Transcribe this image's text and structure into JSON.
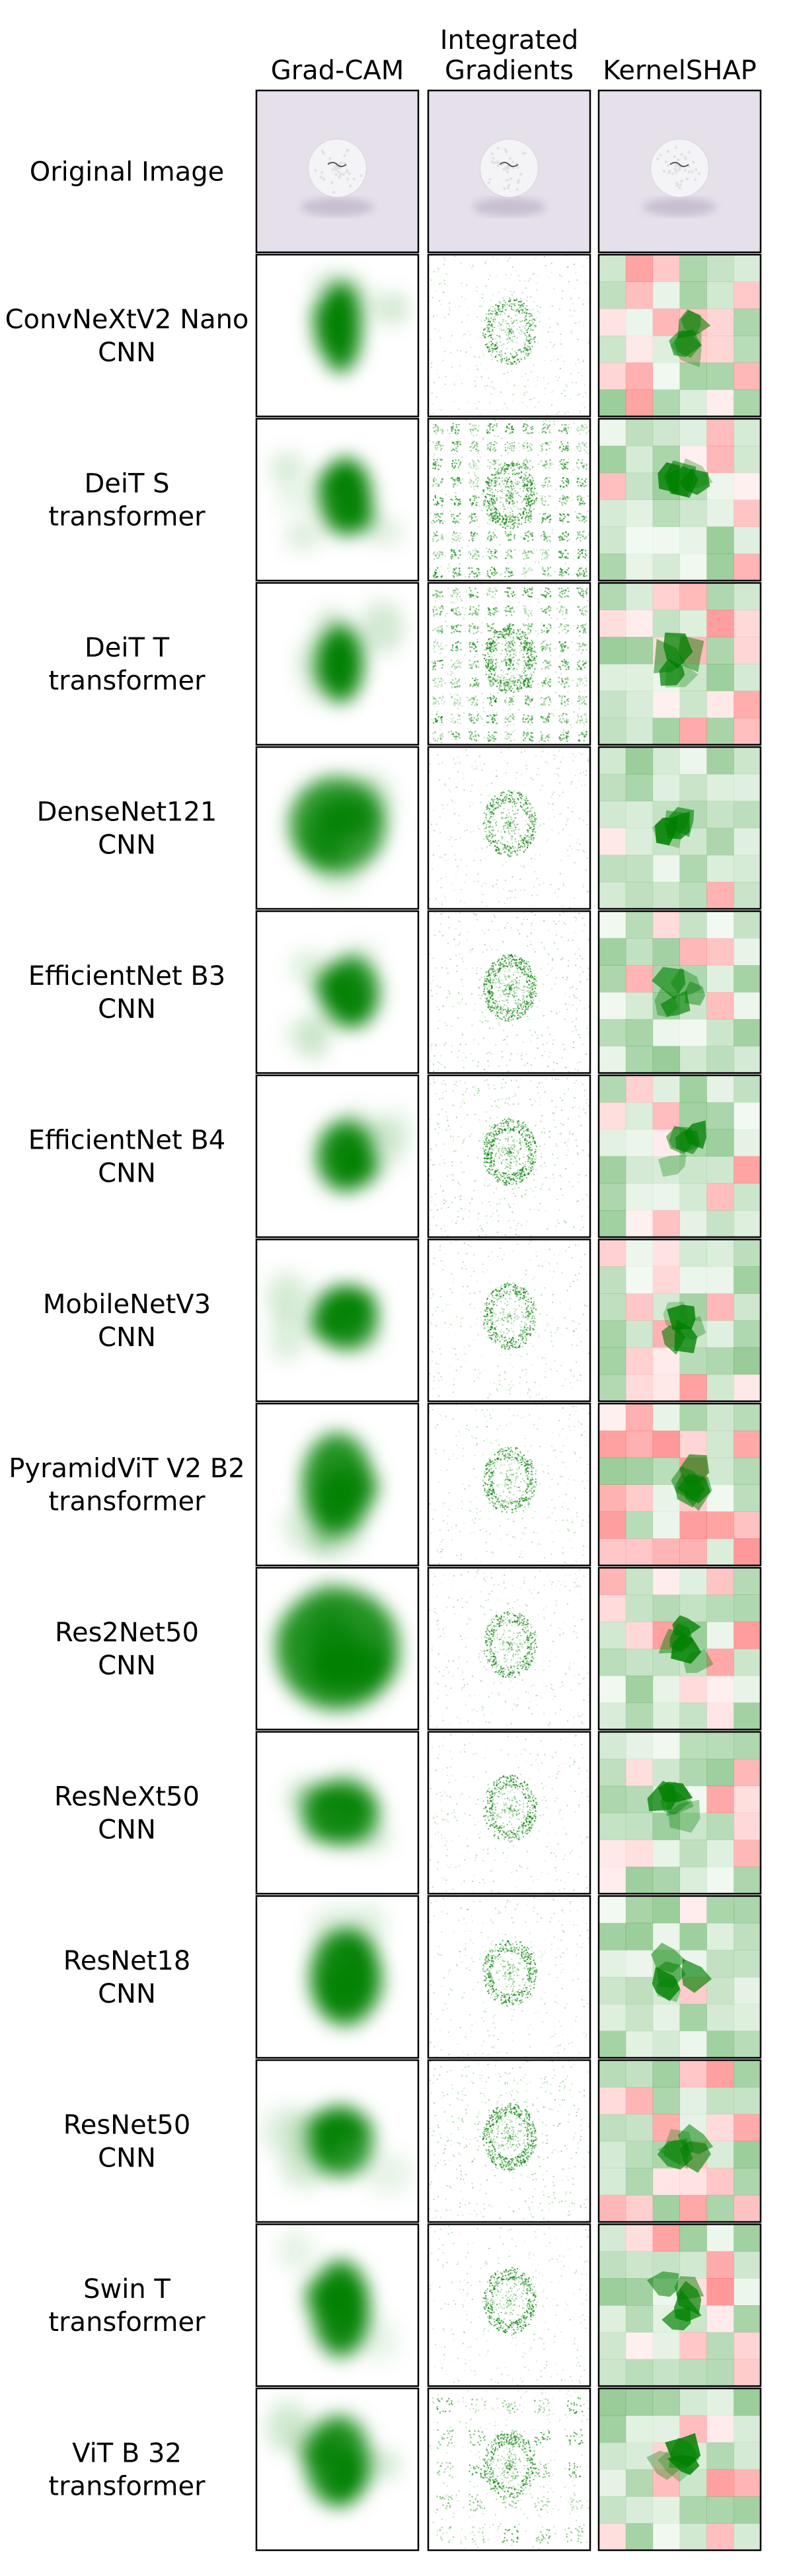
{
  "columns": [
    {
      "lines": [
        "Grad-CAM"
      ],
      "kind": "gradcam"
    },
    {
      "lines": [
        "Integrated",
        "Gradients"
      ],
      "kind": "ig"
    },
    {
      "lines": [
        "KernelSHAP"
      ],
      "kind": "shap"
    }
  ],
  "rows": [
    {
      "lines": [
        "Original Image"
      ],
      "arch": "",
      "original": true,
      "seed": 1,
      "gc": [
        0.5,
        0.5,
        0,
        0,
        0
      ]
    },
    {
      "lines": [
        "ConvNeXtV2 Nano",
        "CNN"
      ],
      "arch": "CNN",
      "seed": 2,
      "gc": [
        0.52,
        0.45,
        0.13,
        0.28,
        0.95
      ],
      "igPattern": "oval",
      "shapRed": 0.35
    },
    {
      "lines": [
        "DeiT S",
        "transformer"
      ],
      "arch": "transformer",
      "seed": 3,
      "gc": [
        0.55,
        0.48,
        0.16,
        0.24,
        0.95
      ],
      "igPattern": "grid",
      "shapRed": 0.3
    },
    {
      "lines": [
        "DeiT T",
        "transformer"
      ],
      "arch": "transformer",
      "seed": 4,
      "gc": [
        0.52,
        0.5,
        0.14,
        0.24,
        0.95
      ],
      "igPattern": "grid",
      "shapRed": 0.25
    },
    {
      "lines": [
        "DenseNet121",
        "CNN"
      ],
      "arch": "CNN",
      "seed": 5,
      "gc": [
        0.5,
        0.48,
        0.3,
        0.3,
        0.8
      ],
      "igPattern": "oval",
      "shapRed": 0.15
    },
    {
      "lines": [
        "EfficientNet B3",
        "CNN"
      ],
      "arch": "CNN",
      "seed": 6,
      "gc": [
        0.58,
        0.5,
        0.18,
        0.22,
        0.9
      ],
      "igPattern": "oval-noisy",
      "shapRed": 0.35
    },
    {
      "lines": [
        "EfficientNet B4",
        "CNN"
      ],
      "arch": "CNN",
      "seed": 7,
      "gc": [
        0.55,
        0.5,
        0.18,
        0.22,
        0.9
      ],
      "igPattern": "oval-noisy",
      "shapRed": 0.2
    },
    {
      "lines": [
        "MobileNetV3",
        "CNN"
      ],
      "arch": "CNN",
      "seed": 8,
      "gc": [
        0.55,
        0.48,
        0.2,
        0.2,
        0.9
      ],
      "igPattern": "oval",
      "shapRed": 0.3
    },
    {
      "lines": [
        "PyramidViT V2 B2",
        "transformer"
      ],
      "arch": "transformer",
      "seed": 9,
      "gc": [
        0.5,
        0.5,
        0.22,
        0.32,
        0.85
      ],
      "igPattern": "oval",
      "shapRed": 0.5
    },
    {
      "lines": [
        "Res2Net50",
        "CNN"
      ],
      "arch": "CNN",
      "seed": 10,
      "gc": [
        0.5,
        0.5,
        0.38,
        0.38,
        0.85
      ],
      "igPattern": "oval",
      "shapRed": 0.25
    },
    {
      "lines": [
        "ResNeXt50",
        "CNN"
      ],
      "arch": "CNN",
      "seed": 11,
      "gc": [
        0.52,
        0.5,
        0.24,
        0.2,
        0.85
      ],
      "igPattern": "oval",
      "shapRed": 0.3
    },
    {
      "lines": [
        "ResNet18",
        "CNN"
      ],
      "arch": "CNN",
      "seed": 12,
      "gc": [
        0.55,
        0.5,
        0.22,
        0.3,
        0.9
      ],
      "igPattern": "oval",
      "shapRed": 0.15
    },
    {
      "lines": [
        "ResNet50",
        "CNN"
      ],
      "arch": "CNN",
      "seed": 13,
      "gc": [
        0.52,
        0.5,
        0.2,
        0.22,
        0.85
      ],
      "igPattern": "oval-noisy",
      "shapRed": 0.45
    },
    {
      "lines": [
        "Swin T",
        "transformer"
      ],
      "arch": "transformer",
      "seed": 14,
      "gc": [
        0.52,
        0.52,
        0.18,
        0.3,
        0.9
      ],
      "igPattern": "oval",
      "shapRed": 0.3
    },
    {
      "lines": [
        "ViT B 32",
        "transformer"
      ],
      "arch": "transformer",
      "seed": 15,
      "gc": [
        0.5,
        0.45,
        0.2,
        0.28,
        0.85
      ],
      "igPattern": "grid-coarse",
      "shapRed": 0.35
    }
  ],
  "colors": {
    "attribution_positive": "#008000",
    "attribution_negative": "#ff0000",
    "panel_border": "#000000",
    "background_image": "#e6e0ea",
    "golf_ball": "#f4f4f6"
  }
}
